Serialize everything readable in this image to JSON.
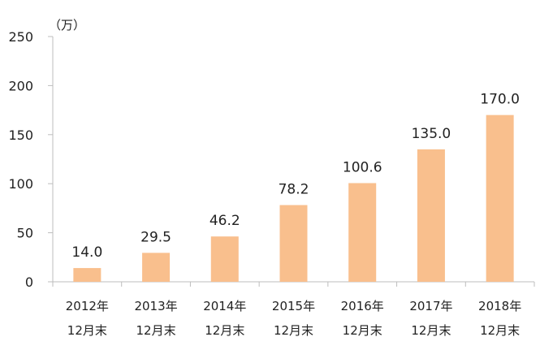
{
  "chart_data": {
    "type": "bar",
    "title": "",
    "unit_label": "（万）",
    "xlabel": "",
    "ylabel": "",
    "ylim": [
      0,
      250
    ],
    "yticks": [
      0,
      50,
      100,
      150,
      200,
      250
    ],
    "grid": false,
    "legend": "none",
    "bar_color": "#f9bf8d",
    "categories": [
      [
        "2012年",
        "12月末"
      ],
      [
        "2013年",
        "12月末"
      ],
      [
        "2014年",
        "12月末"
      ],
      [
        "2015年",
        "12月末"
      ],
      [
        "2016年",
        "12月末"
      ],
      [
        "2017年",
        "12月末"
      ],
      [
        "2018年",
        "12月末"
      ]
    ],
    "values": [
      14.0,
      29.5,
      46.2,
      78.2,
      100.6,
      135.0,
      170.0
    ],
    "value_labels": [
      "14.0",
      "29.5",
      "46.2",
      "78.2",
      "100.6",
      "135.0",
      "170.0"
    ]
  }
}
